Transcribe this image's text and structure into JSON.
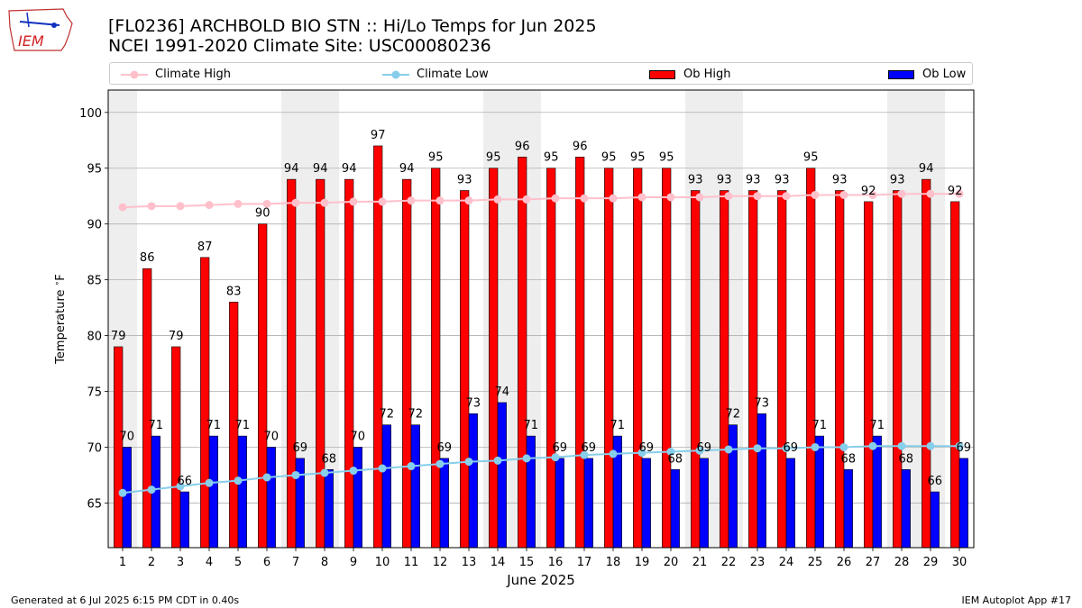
{
  "header": {
    "title": "[FL0236] ARCHBOLD BIO STN :: Hi/Lo Temps for Jun 2025",
    "subtitle": "NCEI 1991-2020 Climate Site: USC00080236",
    "logo_text": "IEM"
  },
  "legend": {
    "climate_high": "Climate High",
    "climate_low": "Climate Low",
    "ob_high": "Ob High",
    "ob_low": "Ob Low"
  },
  "footer": {
    "generated": "Generated at 6 Jul 2025 6:15 PM CDT in 0.40s",
    "app": "IEM Autoplot App #17"
  },
  "colors": {
    "ob_high": "#ff0000",
    "ob_low": "#0000ff",
    "climate_high": "#ffc0cb",
    "climate_low": "#87ceeb",
    "weekend_shade": "#eeeeee",
    "grid": "#b0b0b0"
  },
  "chart_data": {
    "type": "bar",
    "xlabel": "June 2025",
    "ylabel": "Temperature $^\\circ$F",
    "ylim": [
      61,
      102
    ],
    "yticks": [
      65,
      70,
      75,
      80,
      85,
      90,
      95,
      100
    ],
    "grid": "horizontal",
    "legend_placement": "top",
    "categories": [
      "1",
      "2",
      "3",
      "4",
      "5",
      "6",
      "7",
      "8",
      "9",
      "10",
      "11",
      "12",
      "13",
      "14",
      "15",
      "16",
      "17",
      "18",
      "19",
      "20",
      "21",
      "22",
      "23",
      "24",
      "25",
      "26",
      "27",
      "28",
      "29",
      "30"
    ],
    "shaded_days": [
      1,
      7,
      8,
      14,
      15,
      21,
      22,
      28,
      29
    ],
    "series": [
      {
        "name": "Ob High",
        "kind": "bar",
        "values": [
          79,
          86,
          79,
          87,
          83,
          90,
          94,
          94,
          94,
          97,
          94,
          95,
          93,
          95,
          96,
          95,
          96,
          95,
          95,
          95,
          93,
          93,
          93,
          93,
          95,
          93,
          92,
          93,
          94,
          92
        ]
      },
      {
        "name": "Ob Low",
        "kind": "bar",
        "values": [
          70,
          71,
          66,
          71,
          71,
          70,
          69,
          68,
          70,
          72,
          72,
          69,
          73,
          74,
          71,
          69,
          69,
          71,
          69,
          68,
          69,
          72,
          73,
          69,
          71,
          68,
          71,
          68,
          66,
          69
        ]
      },
      {
        "name": "Climate High",
        "kind": "line",
        "values": [
          91.5,
          91.6,
          91.6,
          91.7,
          91.8,
          91.8,
          91.9,
          91.9,
          92.0,
          92.0,
          92.1,
          92.1,
          92.1,
          92.2,
          92.2,
          92.3,
          92.3,
          92.3,
          92.4,
          92.4,
          92.4,
          92.5,
          92.5,
          92.5,
          92.6,
          92.6,
          92.6,
          92.7,
          92.7,
          92.7
        ]
      },
      {
        "name": "Climate Low",
        "kind": "line",
        "values": [
          65.9,
          66.2,
          66.5,
          66.8,
          67.0,
          67.3,
          67.5,
          67.7,
          67.9,
          68.1,
          68.3,
          68.5,
          68.7,
          68.8,
          69.0,
          69.1,
          69.3,
          69.4,
          69.5,
          69.6,
          69.7,
          69.8,
          69.9,
          69.9,
          70.0,
          70.0,
          70.1,
          70.1,
          70.1,
          70.1
        ]
      }
    ]
  }
}
